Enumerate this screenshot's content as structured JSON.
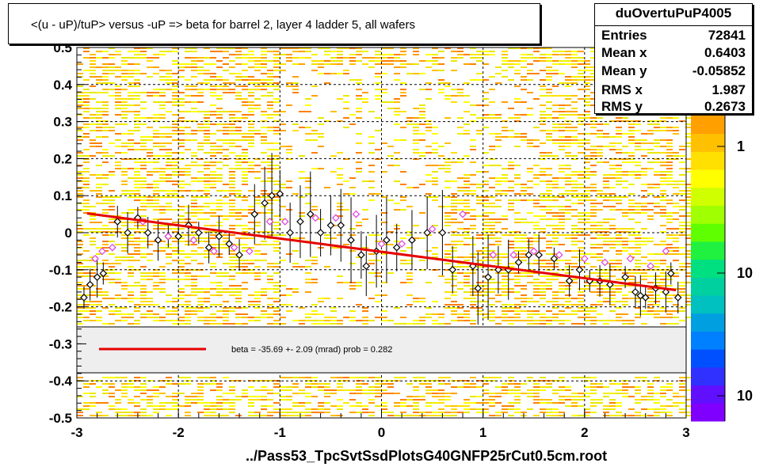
{
  "title": "<(u - uP)/tuP> versus  -uP => beta for barrel 2, layer 4 ladder 5, all wafers",
  "stats": {
    "name": "duOvertuPuP4005",
    "rows": [
      {
        "key": "Entries",
        "value": "72841"
      },
      {
        "key": "Mean x",
        "value": "0.6403"
      },
      {
        "key": "Mean y",
        "value": "-0.05852"
      },
      {
        "key": "RMS x",
        "value": "1.987"
      },
      {
        "key": "RMS y",
        "value": "0.2673"
      }
    ]
  },
  "fit_legend": "beta =  -35.69 +-  2.09 (mrad) prob = 0.282",
  "xfile": "../Pass53_TpcSvtSsdPlotsG40GNFP25rCut0.5cm.root",
  "colors": {
    "fit": "#e60000",
    "profile_black": "#000000",
    "profile_magenta": "#e040e0",
    "legend_bg": "#eeeeee"
  },
  "chart_data": {
    "type": "scatter",
    "xlim": [
      -3,
      3
    ],
    "ylim": [
      -0.5,
      0.5
    ],
    "x_ticks": [
      "-3",
      "-2",
      "-1",
      "0",
      "1",
      "2",
      "3"
    ],
    "y_ticks": [
      "-0.5",
      "-0.4",
      "-0.3",
      "-0.2",
      "-0.1",
      "0",
      "0.1",
      "0.2",
      "0.3",
      "0.4",
      "0.5"
    ],
    "grid": true,
    "colorbar_labels": [
      "1",
      "10",
      "10"
    ],
    "fit_line": {
      "x": [
        -2.9,
        2.9
      ],
      "y": [
        0.052,
        -0.155
      ]
    },
    "series": [
      {
        "points": [
          {
            "x": -2.93,
            "y": -0.175
          },
          {
            "x": -2.87,
            "y": -0.14
          },
          {
            "x": -2.8,
            "y": -0.12
          },
          {
            "x": -2.74,
            "y": -0.11
          },
          {
            "x": -2.6,
            "y": 0.03
          },
          {
            "x": -2.5,
            "y": 0.0
          },
          {
            "x": -2.4,
            "y": 0.04
          },
          {
            "x": -2.3,
            "y": 0.0
          },
          {
            "x": -2.2,
            "y": -0.02
          },
          {
            "x": -2.1,
            "y": -0.01
          },
          {
            "x": -2.0,
            "y": -0.01
          },
          {
            "x": -1.9,
            "y": 0.02
          },
          {
            "x": -1.8,
            "y": 0.0
          },
          {
            "x": -1.7,
            "y": -0.04
          },
          {
            "x": -1.6,
            "y": -0.01
          },
          {
            "x": -1.5,
            "y": -0.03
          },
          {
            "x": -1.4,
            "y": -0.06
          },
          {
            "x": -1.25,
            "y": 0.05
          },
          {
            "x": -1.15,
            "y": 0.08
          },
          {
            "x": -1.08,
            "y": 0.1
          },
          {
            "x": -1.0,
            "y": 0.105
          },
          {
            "x": -0.9,
            "y": 0.0
          },
          {
            "x": -0.8,
            "y": 0.03
          },
          {
            "x": -0.7,
            "y": 0.05
          },
          {
            "x": -0.6,
            "y": 0.0
          },
          {
            "x": -0.5,
            "y": 0.02
          },
          {
            "x": -0.4,
            "y": 0.02
          },
          {
            "x": -0.3,
            "y": -0.02
          },
          {
            "x": -0.2,
            "y": -0.06
          },
          {
            "x": -0.15,
            "y": -0.09
          },
          {
            "x": -0.05,
            "y": -0.05
          },
          {
            "x": 0.05,
            "y": -0.02
          },
          {
            "x": 0.15,
            "y": -0.04
          },
          {
            "x": 0.3,
            "y": -0.02
          },
          {
            "x": 0.45,
            "y": 0.0
          },
          {
            "x": 0.6,
            "y": 0.0
          },
          {
            "x": 0.7,
            "y": -0.1
          },
          {
            "x": 0.9,
            "y": -0.09
          },
          {
            "x": 0.95,
            "y": -0.15
          },
          {
            "x": 1.05,
            "y": -0.12
          },
          {
            "x": 1.15,
            "y": -0.1
          },
          {
            "x": 1.25,
            "y": -0.1
          },
          {
            "x": 1.35,
            "y": -0.08
          },
          {
            "x": 1.45,
            "y": -0.06
          },
          {
            "x": 1.55,
            "y": -0.06
          },
          {
            "x": 1.7,
            "y": -0.07
          },
          {
            "x": 1.85,
            "y": -0.13
          },
          {
            "x": 1.95,
            "y": -0.1
          },
          {
            "x": 2.05,
            "y": -0.13
          },
          {
            "x": 2.15,
            "y": -0.13
          },
          {
            "x": 2.25,
            "y": -0.14
          },
          {
            "x": 2.4,
            "y": -0.12
          },
          {
            "x": 2.5,
            "y": -0.16
          },
          {
            "x": 2.55,
            "y": -0.17
          },
          {
            "x": 2.6,
            "y": -0.175
          },
          {
            "x": 2.7,
            "y": -0.15
          },
          {
            "x": 2.8,
            "y": -0.16
          },
          {
            "x": 2.85,
            "y": -0.11
          },
          {
            "x": 2.92,
            "y": -0.175
          }
        ]
      },
      {
        "points": [
          {
            "x": -2.82,
            "y": -0.07
          },
          {
            "x": -2.75,
            "y": -0.05
          },
          {
            "x": -2.65,
            "y": -0.04
          },
          {
            "x": -2.35,
            "y": 0.03
          },
          {
            "x": -2.1,
            "y": -0.01
          },
          {
            "x": -1.85,
            "y": -0.02
          },
          {
            "x": -1.65,
            "y": -0.05
          },
          {
            "x": -1.45,
            "y": -0.04
          },
          {
            "x": -1.3,
            "y": -0.05
          },
          {
            "x": -1.1,
            "y": 0.03
          },
          {
            "x": -0.95,
            "y": 0.03
          },
          {
            "x": -0.65,
            "y": 0.04
          },
          {
            "x": -0.45,
            "y": 0.04
          },
          {
            "x": -0.25,
            "y": 0.05
          },
          {
            "x": 0.0,
            "y": -0.03
          },
          {
            "x": 0.2,
            "y": -0.03
          },
          {
            "x": 0.5,
            "y": 0.01
          },
          {
            "x": 0.8,
            "y": 0.05
          },
          {
            "x": 1.1,
            "y": -0.06
          },
          {
            "x": 1.3,
            "y": -0.06
          },
          {
            "x": 1.5,
            "y": -0.05
          },
          {
            "x": 1.75,
            "y": -0.06
          },
          {
            "x": 2.0,
            "y": -0.07
          },
          {
            "x": 2.2,
            "y": -0.08
          },
          {
            "x": 2.45,
            "y": -0.07
          },
          {
            "x": 2.65,
            "y": -0.09
          },
          {
            "x": 2.8,
            "y": -0.05
          }
        ]
      }
    ]
  }
}
